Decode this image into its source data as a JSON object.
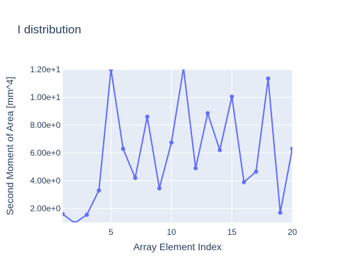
{
  "chart_data": {
    "type": "line",
    "title": "I distribution",
    "xlabel": "Array Element Index",
    "ylabel": "Second Moment of Area [mm^4]",
    "xlim": [
      1,
      20
    ],
    "ylim": [
      1.0,
      12.0
    ],
    "x_ticks": [
      5,
      10,
      15,
      20
    ],
    "x_tick_labels": [
      "5",
      "10",
      "15",
      "20"
    ],
    "y_ticks": [
      2,
      4,
      6,
      8,
      10,
      12
    ],
    "y_tick_labels": [
      "2.00e+0",
      "4.00e+0",
      "6.00e+0",
      "8.00e+0",
      "1.00e+1",
      "1.20e+1"
    ],
    "grid": true,
    "colors": {
      "line": "#636efa",
      "plot_bg": "#e5ecf6",
      "grid": "#ffffff"
    },
    "series": [
      {
        "x": [
          1,
          2,
          3,
          4,
          5,
          6,
          7,
          8,
          9,
          10,
          11,
          12,
          13,
          14,
          15,
          16,
          17,
          18,
          19,
          20
        ],
        "values": [
          1.6,
          0.95,
          1.55,
          3.3,
          12.0,
          6.3,
          4.2,
          8.6,
          3.45,
          6.75,
          12.1,
          4.9,
          8.85,
          6.2,
          10.05,
          3.9,
          4.65,
          11.35,
          1.7,
          6.3
        ]
      }
    ]
  }
}
